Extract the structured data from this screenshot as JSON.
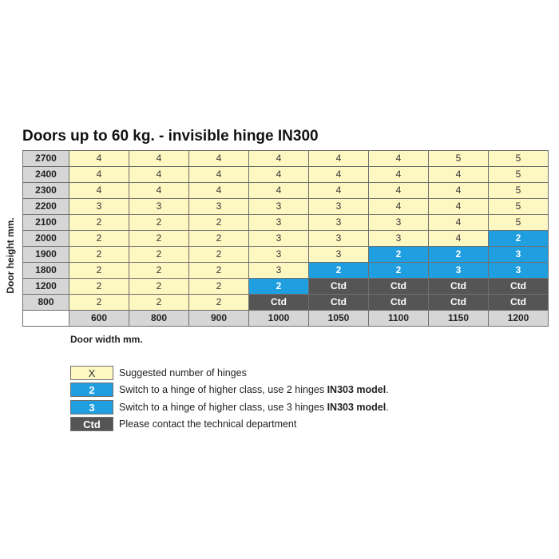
{
  "title": "Doors up to 60 kg. - invisible hinge IN300",
  "y_axis_label": "Door height mm.",
  "x_axis_label": "Door width mm.",
  "columns": [
    "600",
    "800",
    "900",
    "1000",
    "1050",
    "1100",
    "1150",
    "1200"
  ],
  "rows": [
    {
      "height": "2700",
      "cells": [
        {
          "v": "4",
          "t": "x"
        },
        {
          "v": "4",
          "t": "x"
        },
        {
          "v": "4",
          "t": "x"
        },
        {
          "v": "4",
          "t": "x"
        },
        {
          "v": "4",
          "t": "x"
        },
        {
          "v": "4",
          "t": "x"
        },
        {
          "v": "5",
          "t": "x"
        },
        {
          "v": "5",
          "t": "x"
        }
      ]
    },
    {
      "height": "2400",
      "cells": [
        {
          "v": "4",
          "t": "x"
        },
        {
          "v": "4",
          "t": "x"
        },
        {
          "v": "4",
          "t": "x"
        },
        {
          "v": "4",
          "t": "x"
        },
        {
          "v": "4",
          "t": "x"
        },
        {
          "v": "4",
          "t": "x"
        },
        {
          "v": "4",
          "t": "x"
        },
        {
          "v": "5",
          "t": "x"
        }
      ]
    },
    {
      "height": "2300",
      "cells": [
        {
          "v": "4",
          "t": "x"
        },
        {
          "v": "4",
          "t": "x"
        },
        {
          "v": "4",
          "t": "x"
        },
        {
          "v": "4",
          "t": "x"
        },
        {
          "v": "4",
          "t": "x"
        },
        {
          "v": "4",
          "t": "x"
        },
        {
          "v": "4",
          "t": "x"
        },
        {
          "v": "5",
          "t": "x"
        }
      ]
    },
    {
      "height": "2200",
      "cells": [
        {
          "v": "3",
          "t": "x"
        },
        {
          "v": "3",
          "t": "x"
        },
        {
          "v": "3",
          "t": "x"
        },
        {
          "v": "3",
          "t": "x"
        },
        {
          "v": "3",
          "t": "x"
        },
        {
          "v": "4",
          "t": "x"
        },
        {
          "v": "4",
          "t": "x"
        },
        {
          "v": "5",
          "t": "x"
        }
      ]
    },
    {
      "height": "2100",
      "cells": [
        {
          "v": "2",
          "t": "x"
        },
        {
          "v": "2",
          "t": "x"
        },
        {
          "v": "2",
          "t": "x"
        },
        {
          "v": "3",
          "t": "x"
        },
        {
          "v": "3",
          "t": "x"
        },
        {
          "v": "3",
          "t": "x"
        },
        {
          "v": "4",
          "t": "x"
        },
        {
          "v": "5",
          "t": "x"
        }
      ]
    },
    {
      "height": "2000",
      "cells": [
        {
          "v": "2",
          "t": "x"
        },
        {
          "v": "2",
          "t": "x"
        },
        {
          "v": "2",
          "t": "x"
        },
        {
          "v": "3",
          "t": "x"
        },
        {
          "v": "3",
          "t": "x"
        },
        {
          "v": "3",
          "t": "x"
        },
        {
          "v": "4",
          "t": "x"
        },
        {
          "v": "2",
          "t": "b"
        }
      ]
    },
    {
      "height": "1900",
      "cells": [
        {
          "v": "2",
          "t": "x"
        },
        {
          "v": "2",
          "t": "x"
        },
        {
          "v": "2",
          "t": "x"
        },
        {
          "v": "3",
          "t": "x"
        },
        {
          "v": "3",
          "t": "x"
        },
        {
          "v": "2",
          "t": "b"
        },
        {
          "v": "2",
          "t": "b"
        },
        {
          "v": "3",
          "t": "b"
        }
      ]
    },
    {
      "height": "1800",
      "cells": [
        {
          "v": "2",
          "t": "x"
        },
        {
          "v": "2",
          "t": "x"
        },
        {
          "v": "2",
          "t": "x"
        },
        {
          "v": "3",
          "t": "x"
        },
        {
          "v": "2",
          "t": "b"
        },
        {
          "v": "2",
          "t": "b"
        },
        {
          "v": "3",
          "t": "b"
        },
        {
          "v": "3",
          "t": "b"
        }
      ]
    },
    {
      "height": "1200",
      "cells": [
        {
          "v": "2",
          "t": "x"
        },
        {
          "v": "2",
          "t": "x"
        },
        {
          "v": "2",
          "t": "x"
        },
        {
          "v": "2",
          "t": "b"
        },
        {
          "v": "Ctd",
          "t": "d"
        },
        {
          "v": "Ctd",
          "t": "d"
        },
        {
          "v": "Ctd",
          "t": "d"
        },
        {
          "v": "Ctd",
          "t": "d"
        }
      ]
    },
    {
      "height": "800",
      "cells": [
        {
          "v": "2",
          "t": "x"
        },
        {
          "v": "2",
          "t": "x"
        },
        {
          "v": "2",
          "t": "x"
        },
        {
          "v": "Ctd",
          "t": "d"
        },
        {
          "v": "Ctd",
          "t": "d"
        },
        {
          "v": "Ctd",
          "t": "d"
        },
        {
          "v": "Ctd",
          "t": "d"
        },
        {
          "v": "Ctd",
          "t": "d"
        }
      ]
    }
  ],
  "legend": [
    {
      "type": "x",
      "swatch": "X",
      "text": "Suggested number of hinges",
      "bold": ""
    },
    {
      "type": "b",
      "swatch": "2",
      "text": "Switch to a hinge of  higher class, use 2 hinges ",
      "bold": "IN303 model",
      "after": "."
    },
    {
      "type": "b",
      "swatch": "3",
      "text": "Switch to a hinge of  higher class, use 3 hinges ",
      "bold": "IN303 model",
      "after": "."
    },
    {
      "type": "d",
      "swatch": "Ctd",
      "text": "Please contact the technical department",
      "bold": ""
    }
  ],
  "colors": {
    "suggested": "#fdf8c1",
    "higher_class": "#1f9fe0",
    "contact": "#555555",
    "header": "#d6d6d6"
  }
}
